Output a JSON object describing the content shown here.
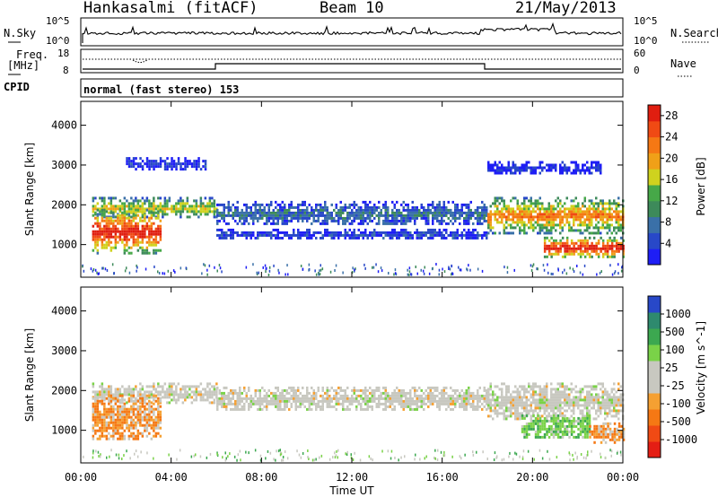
{
  "header": {
    "title": "Hankasalmi (fitACF)",
    "beam": "Beam 10",
    "date": "21/May/2013"
  },
  "noise_panel": {
    "left_label": "N.Sky",
    "left_ticks": [
      "10^5",
      "10^0"
    ],
    "right_label": "N.Search",
    "right_ticks": [
      "10^5",
      "10^0"
    ]
  },
  "freq_panel": {
    "left_label_1": "Freq.",
    "left_label_2": "[MHz]",
    "left_ticks": [
      "18",
      "8"
    ],
    "right_label": "Nave",
    "right_ticks": [
      "60",
      "0"
    ]
  },
  "cpid": {
    "label": "CPID",
    "value": "normal (fast stereo) 153"
  },
  "colors": {
    "power_scale": [
      "#1e1ef5",
      "#2848c8",
      "#3a70a8",
      "#3d8a5a",
      "#46a848",
      "#cfd21e",
      "#f0a018",
      "#f57814",
      "#f04a14",
      "#e01e10"
    ],
    "velocity_scale": [
      "#e41e14",
      "#f04a14",
      "#f57814",
      "#f5a032",
      "#c8c8c0",
      "#c8c8c0",
      "#7ad248",
      "#3ca850",
      "#2e8a6e",
      "#2848c8"
    ]
  },
  "chart_data": [
    {
      "type": "heatmap",
      "name": "power",
      "xlabel": "Time UT",
      "ylabel": "Slant Range [km]",
      "x_ticks": [
        "00:00",
        "04:00",
        "08:00",
        "12:00",
        "16:00",
        "20:00",
        "00:00"
      ],
      "y_ticks": [
        1000,
        2000,
        3000,
        4000
      ],
      "x_range_hours": [
        0,
        24
      ],
      "y_range_km": [
        180,
        4600
      ],
      "colorbar_title": "Power [dB]",
      "colorbar_ticks": [
        4,
        8,
        12,
        16,
        20,
        24,
        28
      ],
      "colorbar_range": [
        0,
        30
      ],
      "bands": [
        {
          "t": [
            0.5,
            6.0
          ],
          "r": [
            1700,
            2200
          ],
          "level": 0.55
        },
        {
          "t": [
            0.5,
            3.5
          ],
          "r": [
            800,
            1900
          ],
          "level": 0.92
        },
        {
          "t": [
            6.0,
            18.0
          ],
          "r": [
            1500,
            2100
          ],
          "level": 0.25
        },
        {
          "t": [
            6.0,
            18.0
          ],
          "r": [
            1150,
            1400
          ],
          "level": 0.12
        },
        {
          "t": [
            2.0,
            5.5
          ],
          "r": [
            2900,
            3200
          ],
          "level": 0.1
        },
        {
          "t": [
            18.0,
            24.0
          ],
          "r": [
            1300,
            2200
          ],
          "level": 0.7
        },
        {
          "t": [
            20.5,
            24.0
          ],
          "r": [
            700,
            1200
          ],
          "level": 0.95
        },
        {
          "t": [
            18.0,
            23.0
          ],
          "r": [
            2800,
            3100
          ],
          "level": 0.08
        }
      ]
    },
    {
      "type": "heatmap",
      "name": "velocity",
      "xlabel": "Time UT",
      "ylabel": "Slant Range [km]",
      "x_ticks": [
        "00:00",
        "04:00",
        "08:00",
        "12:00",
        "16:00",
        "20:00",
        "00:00"
      ],
      "y_ticks": [
        1000,
        2000,
        3000,
        4000
      ],
      "x_range_hours": [
        0,
        24
      ],
      "y_range_km": [
        180,
        4600
      ],
      "colorbar_title": "Velocity [m s^-1]",
      "colorbar_ticks": [
        1000,
        500,
        100,
        25,
        -25,
        -100,
        -500,
        -1000
      ],
      "bands": [
        {
          "t": [
            0.5,
            6.0
          ],
          "r": [
            1700,
            2200
          ],
          "vel": "near-zero"
        },
        {
          "t": [
            0.5,
            3.5
          ],
          "r": [
            800,
            1900
          ],
          "vel": "negative"
        },
        {
          "t": [
            6.0,
            18.0
          ],
          "r": [
            1500,
            2100
          ],
          "vel": "near-zero"
        },
        {
          "t": [
            18.0,
            24.0
          ],
          "r": [
            1300,
            2200
          ],
          "vel": "near-zero"
        },
        {
          "t": [
            19.5,
            22.5
          ],
          "r": [
            800,
            1400
          ],
          "vel": "positive"
        },
        {
          "t": [
            22.5,
            24.0
          ],
          "r": [
            700,
            1200
          ],
          "vel": "negative"
        }
      ]
    }
  ]
}
